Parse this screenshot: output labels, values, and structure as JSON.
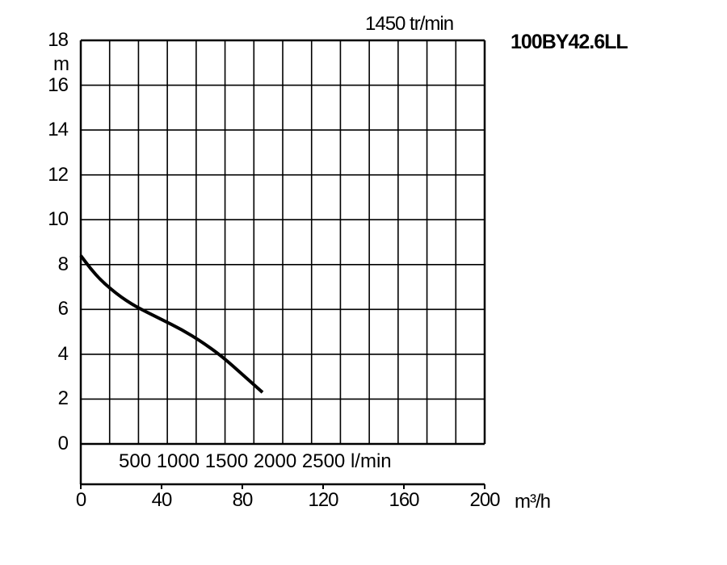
{
  "chart_data": {
    "type": "line",
    "title": "100BY42.6LL",
    "speed_label": "1450 tr/min",
    "ylabel": "m",
    "xlabel": "m³/h",
    "ylim": [
      0,
      18
    ],
    "xlim": [
      0,
      200
    ],
    "grid": true,
    "y_ticks": [
      0,
      2,
      4,
      6,
      8,
      10,
      12,
      14,
      16,
      18
    ],
    "x_ticks": [
      0,
      40,
      80,
      120,
      160,
      200
    ],
    "secondary_axis": {
      "label_text": "500 1000 1500 2000 2500 l/min",
      "unit": "l/min",
      "ticks": [
        500,
        1000,
        1500,
        2000,
        2500
      ]
    },
    "series": [
      {
        "x": [
          0,
          5,
          10,
          15,
          20,
          25,
          30,
          40,
          50,
          60,
          70,
          80,
          90
        ],
        "y": [
          8.4,
          7.8,
          7.3,
          6.9,
          6.55,
          6.25,
          6.0,
          5.55,
          5.1,
          4.55,
          3.9,
          3.1,
          2.3
        ],
        "color": "#000000"
      }
    ]
  }
}
